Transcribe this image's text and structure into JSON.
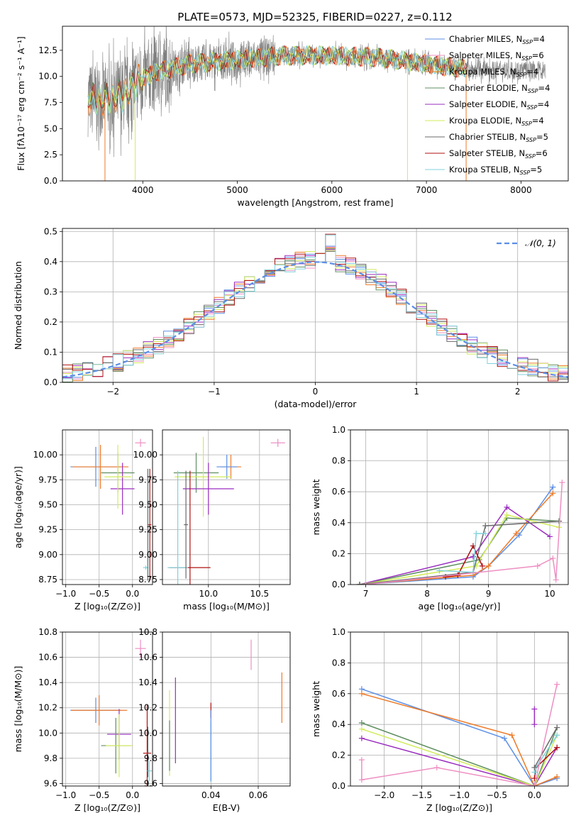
{
  "figure_title": "PLATE=0573, MJD=52325, FIBERID=0227, z=0.112",
  "colors": {
    "chabrier_miles": "#5b8ee6",
    "salpeter_miles": "#ee8fc2",
    "kroupa_miles": "#ee7a28",
    "chabrier_elodie": "#5f8f60",
    "salpeter_elodie": "#9a2dbf",
    "kroupa_elodie": "#d2ec5a",
    "chabrier_stelib": "#6a6a6a",
    "salpeter_stelib": "#b01212",
    "kroupa_stelib": "#80d0dc",
    "data": "#808080",
    "gaussian": "#5b8ee6"
  },
  "chart_data": [
    {
      "id": "spectrum",
      "type": "line",
      "title": "PLATE=0573, MJD=52325, FIBERID=0227, z=0.112",
      "xlabel": "wavelength [Angstrom, rest frame]",
      "ylabel": "Flux [fλ10⁻¹⁷ erg cm⁻² s⁻¹ A⁻¹]",
      "xlim": [
        3150,
        8500
      ],
      "ylim": [
        0,
        14.8
      ],
      "xticks": [
        4000,
        5000,
        6000,
        7000,
        8000
      ],
      "yticks": [
        0.0,
        2.5,
        5.0,
        7.5,
        10.0,
        12.5
      ],
      "grid": false,
      "legend_position": "top-right",
      "legend": [
        {
          "label": "Chabrier MILES, N",
          "sub": "SSP",
          "suffix": "=4",
          "color": "chabrier_miles"
        },
        {
          "label": "Salpeter MILES, N",
          "sub": "SSP",
          "suffix": "=6",
          "color": "salpeter_miles"
        },
        {
          "label": "Kroupa MILES, N",
          "sub": "SSP",
          "suffix": "=4",
          "color": "kroupa_miles"
        },
        {
          "label": "Chabrier ELODIE, N",
          "sub": "SSP",
          "suffix": "=4",
          "color": "chabrier_elodie"
        },
        {
          "label": "Salpeter ELODIE, N",
          "sub": "SSP",
          "suffix": "=4",
          "color": "salpeter_elodie"
        },
        {
          "label": "Kroupa ELODIE, N",
          "sub": "SSP",
          "suffix": "=4",
          "color": "kroupa_elodie"
        },
        {
          "label": "Chabrier STELIB, N",
          "sub": "SSP",
          "suffix": "=5",
          "color": "chabrier_stelib"
        },
        {
          "label": "Salpeter STELIB, N",
          "sub": "SSP",
          "suffix": "=6",
          "color": "salpeter_stelib"
        },
        {
          "label": "Kroupa STELIB, N",
          "sub": "SSP",
          "suffix": "=5",
          "color": "kroupa_stelib"
        }
      ],
      "continuum": [
        [
          3420,
          7.8
        ],
        [
          3600,
          7.8
        ],
        [
          3800,
          8.2
        ],
        [
          3950,
          9.6
        ],
        [
          4100,
          10.3
        ],
        [
          4500,
          11.2
        ],
        [
          5000,
          11.6
        ],
        [
          5500,
          12.0
        ],
        [
          6000,
          12.0
        ],
        [
          6500,
          11.8
        ],
        [
          7000,
          11.2
        ],
        [
          7500,
          10.6
        ],
        [
          8000,
          10.6
        ],
        [
          8260,
          10.6
        ]
      ],
      "spectrum_range": [
        3420,
        8260
      ],
      "model_range": [
        3420,
        7420
      ],
      "model_drops": [
        {
          "wavelength": 3600,
          "color": "kroupa_miles"
        },
        {
          "wavelength": 3920,
          "color": "kroupa_elodie"
        },
        {
          "wavelength": 6800,
          "color": "kroupa_elodie"
        },
        {
          "wavelength": 7420,
          "color": "kroupa_miles"
        }
      ]
    },
    {
      "id": "residuals",
      "type": "step",
      "xlabel": "(data-model)/error",
      "ylabel": "Normed distribution",
      "xlim": [
        -2.5,
        2.5
      ],
      "ylim": [
        0,
        0.51
      ],
      "xticks": [
        -2,
        -1,
        0,
        1,
        2
      ],
      "yticks": [
        0.0,
        0.1,
        0.2,
        0.3,
        0.4,
        0.5
      ],
      "grid": true,
      "legend_position": "top-right",
      "gaussian_label": "𝒩(0, 1)",
      "bin_width": 0.1,
      "bin_start": -2.5,
      "series": [
        {
          "color": "chabrier_miles",
          "values": [
            0.028,
            0.031,
            0.036,
            0.04,
            0.048,
            0.057,
            0.068,
            0.079,
            0.092,
            0.107,
            0.123,
            0.14,
            0.158,
            0.177,
            0.197,
            0.218,
            0.24,
            0.262,
            0.282,
            0.302,
            0.322,
            0.34,
            0.356,
            0.37,
            0.382,
            0.392,
            0.399,
            0.404,
            0.406,
            0.405,
            0.401,
            0.394,
            0.384,
            0.371,
            0.355,
            0.337,
            0.317,
            0.295,
            0.272,
            0.249,
            0.225,
            0.203,
            0.181,
            0.16,
            0.141,
            0.123,
            0.107,
            0.092,
            0.079,
            0.068
          ]
        },
        {
          "color": "salpeter_miles",
          "values": [
            0.03,
            0.033,
            0.038,
            0.044,
            0.052,
            0.062,
            0.073,
            0.085,
            0.098,
            0.113,
            0.129,
            0.146,
            0.164,
            0.183,
            0.203,
            0.224,
            0.246,
            0.268,
            0.289,
            0.309,
            0.328,
            0.346,
            0.361,
            0.375,
            0.387,
            0.397,
            0.404,
            0.409,
            0.411,
            0.41,
            0.406,
            0.399,
            0.389,
            0.376,
            0.36,
            0.342,
            0.322,
            0.3,
            0.277,
            0.254,
            0.23,
            0.207,
            0.185,
            0.164,
            0.145,
            0.127,
            0.11,
            0.095,
            0.082,
            0.07
          ]
        }
      ],
      "gaussian_curve": [
        [
          -2.5,
          0.0175
        ],
        [
          -2.0,
          0.054
        ],
        [
          -1.5,
          0.1295
        ],
        [
          -1.0,
          0.242
        ],
        [
          -0.5,
          0.352
        ],
        [
          0.0,
          0.399
        ],
        [
          0.5,
          0.352
        ],
        [
          1.0,
          0.242
        ],
        [
          1.5,
          0.1295
        ],
        [
          2.0,
          0.054
        ],
        [
          2.5,
          0.0175
        ]
      ]
    },
    {
      "id": "age_vs_metallicity",
      "type": "errorbar",
      "xlabel": "Z [log₁₀(Z/Z⊙)]",
      "ylabel": "age  [log₁₀(age/yr)]",
      "xlim": [
        -1.05,
        0.3
      ],
      "ylim": [
        8.7,
        10.25
      ],
      "xticks": [
        -1.0,
        -0.5,
        0.0
      ],
      "yticks": [
        8.75,
        9.0,
        9.25,
        9.5,
        9.75,
        10.0
      ],
      "grid": true,
      "points": [
        {
          "color": "chabrier_miles",
          "x": -0.55,
          "y": 9.88,
          "xerr": 0.38,
          "yerr": 0.2
        },
        {
          "color": "salpeter_miles",
          "x": 0.12,
          "y": 10.12,
          "xerr": 0.08,
          "yerr": 0.04
        },
        {
          "color": "kroupa_miles",
          "x": -0.48,
          "y": 9.88,
          "xerr": 0.42,
          "yerr": 0.22
        },
        {
          "color": "chabrier_elodie",
          "x": -0.22,
          "y": 9.82,
          "xerr": 0.25,
          "yerr": 0.2
        },
        {
          "color": "salpeter_elodie",
          "x": -0.15,
          "y": 9.66,
          "xerr": 0.18,
          "yerr": 0.26
        },
        {
          "color": "kroupa_elodie",
          "x": -0.22,
          "y": 9.78,
          "xerr": 0.2,
          "yerr": 0.32
        },
        {
          "color": "salpeter_stelib",
          "x": 0.26,
          "y": 9.3,
          "xerr": 0.02,
          "yerr": 0.56
        },
        {
          "color": "kroupa_stelib",
          "x": 0.2,
          "y": 8.87,
          "xerr": 0.04,
          "yerr": 0.02
        },
        {
          "color": "chabrier_stelib",
          "x": 0.23,
          "y": 9.3,
          "xerr": 0.01,
          "yerr": 0.56
        }
      ]
    },
    {
      "id": "age_vs_mass",
      "type": "errorbar",
      "xlabel": "mass [log₁₀(M/M⊙)]",
      "ylabel": "",
      "xlim": [
        9.55,
        10.8
      ],
      "ylim": [
        8.7,
        10.25
      ],
      "xticks": [
        10.0,
        10.5
      ],
      "yticks": [
        8.75,
        9.0,
        9.25,
        9.5,
        9.75,
        10.0
      ],
      "grid": true,
      "points": [
        {
          "color": "salpeter_miles",
          "x": 10.68,
          "y": 10.12,
          "xerr": 0.07,
          "yerr": 0.04
        },
        {
          "color": "kroupa_miles",
          "x": 10.22,
          "y": 9.88,
          "xerr": 0.1,
          "yerr": 0.12
        },
        {
          "color": "chabrier_miles",
          "x": 10.18,
          "y": 9.88,
          "xerr": 0.1,
          "yerr": 0.12
        },
        {
          "color": "chabrier_elodie",
          "x": 9.88,
          "y": 9.82,
          "xerr": 0.22,
          "yerr": 0.2
        },
        {
          "color": "kroupa_elodie",
          "x": 9.95,
          "y": 9.78,
          "xerr": 0.28,
          "yerr": 0.4
        },
        {
          "color": "salpeter_elodie",
          "x": 10.0,
          "y": 9.66,
          "xerr": 0.25,
          "yerr": 0.26
        },
        {
          "color": "salpeter_stelib",
          "x": 9.82,
          "y": 8.87,
          "xerr": 0.2,
          "yerr": 0.97
        },
        {
          "color": "kroupa_stelib",
          "x": 9.7,
          "y": 8.87,
          "xerr": 0.1,
          "yerr": 0.97
        },
        {
          "color": "chabrier_stelib",
          "x": 9.78,
          "y": 9.3,
          "xerr": 0.02,
          "yerr": 0.54
        }
      ]
    },
    {
      "id": "mass_weight_vs_age",
      "type": "line",
      "xlabel": "age  [log₁₀(age/yr)]",
      "ylabel": "mass weight",
      "xlim": [
        6.75,
        10.3
      ],
      "ylim": [
        0,
        1.0
      ],
      "xticks": [
        7,
        8,
        9,
        10
      ],
      "yticks": [
        0.0,
        0.2,
        0.4,
        0.6,
        0.8,
        1.0
      ],
      "grid": true,
      "series": [
        {
          "color": "chabrier_miles",
          "x": [
            6.9,
            8.75,
            9.0,
            9.5,
            10.05
          ],
          "y": [
            0.0,
            0.05,
            0.12,
            0.32,
            0.63
          ]
        },
        {
          "color": "kroupa_miles",
          "x": [
            6.9,
            8.75,
            9.0,
            9.45,
            10.05
          ],
          "y": [
            0.0,
            0.06,
            0.12,
            0.33,
            0.59
          ]
        },
        {
          "color": "chabrier_elodie",
          "x": [
            6.9,
            8.85,
            9.3,
            10.15
          ],
          "y": [
            0.0,
            0.16,
            0.43,
            0.41
          ]
        },
        {
          "color": "salpeter_elodie",
          "x": [
            6.9,
            8.75,
            9.3,
            10.0
          ],
          "y": [
            0.0,
            0.18,
            0.5,
            0.31
          ]
        },
        {
          "color": "kroupa_elodie",
          "x": [
            6.9,
            8.8,
            9.3,
            10.15
          ],
          "y": [
            0.0,
            0.12,
            0.45,
            0.37
          ]
        },
        {
          "color": "chabrier_stelib",
          "x": [
            6.9,
            8.75,
            8.95,
            10.15
          ],
          "y": [
            0.0,
            0.08,
            0.38,
            0.41
          ]
        },
        {
          "color": "salpeter_stelib",
          "x": [
            8.3,
            8.5,
            8.75,
            8.9
          ],
          "y": [
            0.05,
            0.06,
            0.25,
            0.12
          ]
        },
        {
          "color": "kroupa_stelib",
          "x": [
            8.2,
            8.75,
            8.8,
            8.95
          ],
          "y": [
            0.09,
            0.08,
            0.33,
            0.33
          ]
        },
        {
          "color": "salpeter_miles",
          "x": [
            7.0,
            9.8,
            10.05,
            10.1,
            10.2
          ],
          "y": [
            0.0,
            0.12,
            0.17,
            0.03,
            0.66
          ]
        }
      ]
    },
    {
      "id": "mass_vs_metallicity",
      "type": "errorbar",
      "xlabel": "Z [log₁₀(Z/Z⊙)]",
      "ylabel": "mass [log₁₀(M/M⊙)]",
      "xlim": [
        -1.05,
        0.3
      ],
      "ylim": [
        9.58,
        10.8
      ],
      "xticks": [
        -1.0,
        -0.5,
        0.0
      ],
      "yticks": [
        9.6,
        9.8,
        10.0,
        10.2,
        10.4,
        10.6,
        10.8
      ],
      "grid": true,
      "points": [
        {
          "color": "salpeter_miles",
          "x": 0.12,
          "y": 10.67,
          "xerr": 0.08,
          "yerr": 0.07
        },
        {
          "color": "chabrier_miles",
          "x": -0.55,
          "y": 10.18,
          "xerr": 0.38,
          "yerr": 0.1
        },
        {
          "color": "kroupa_miles",
          "x": -0.5,
          "y": 10.18,
          "xerr": 0.42,
          "yerr": 0.12
        },
        {
          "color": "salpeter_elodie",
          "x": -0.2,
          "y": 9.99,
          "xerr": 0.18,
          "yerr": 0.2
        },
        {
          "color": "chabrier_elodie",
          "x": -0.25,
          "y": 9.9,
          "xerr": 0.22,
          "yerr": 0.22
        },
        {
          "color": "kroupa_elodie",
          "x": -0.2,
          "y": 9.9,
          "xerr": 0.2,
          "yerr": 0.25
        },
        {
          "color": "salpeter_stelib",
          "x": 0.22,
          "y": 9.84,
          "xerr": 0.06,
          "yerr": 0.38
        },
        {
          "color": "kroupa_stelib",
          "x": 0.25,
          "y": 9.7,
          "xerr": 0.04,
          "yerr": 0.08
        },
        {
          "color": "chabrier_stelib",
          "x": 0.23,
          "y": 9.85,
          "xerr": 0.01,
          "yerr": 0.2
        }
      ]
    },
    {
      "id": "mass_vs_extinction",
      "type": "errorbar",
      "xlabel": "E(B-V)",
      "ylabel": "",
      "xlim": [
        0.0195,
        0.0735
      ],
      "ylim": [
        9.58,
        10.8
      ],
      "xticks": [
        0.04,
        0.06
      ],
      "yticks": [
        9.6,
        9.8,
        10.0,
        10.2,
        10.4,
        10.6,
        10.8
      ],
      "grid": true,
      "points": [
        {
          "color": "salpeter_miles",
          "x": 0.057,
          "y": 10.62,
          "xerr": 0.0,
          "yerr": 0.12
        },
        {
          "color": "kroupa_miles",
          "x": 0.07,
          "y": 10.28,
          "xerr": 0.0,
          "yerr": 0.2
        },
        {
          "color": "salpeter_elodie",
          "x": 0.025,
          "y": 10.1,
          "xerr": 0.0,
          "yerr": 0.34
        },
        {
          "color": "kroupa_elodie",
          "x": 0.0225,
          "y": 10.0,
          "xerr": 0.0,
          "yerr": 0.34
        },
        {
          "color": "chabrier_elodie",
          "x": 0.0225,
          "y": 9.9,
          "xerr": 0.0,
          "yerr": 0.2
        },
        {
          "color": "salpeter_stelib",
          "x": 0.04,
          "y": 10.18,
          "xerr": 0.0,
          "yerr": 0.06
        },
        {
          "color": "kroupa_stelib",
          "x": 0.04,
          "y": 9.85,
          "xerr": 0.0,
          "yerr": 0.24
        },
        {
          "color": "chabrier_miles",
          "x": 0.04,
          "y": 9.9,
          "xerr": 0.0,
          "yerr": 0.28
        }
      ]
    },
    {
      "id": "mass_weight_vs_metallicity",
      "type": "line",
      "xlabel": "Z [log₁₀(Z/Z⊙)]",
      "ylabel": "mass weight",
      "xlim": [
        -2.45,
        0.45
      ],
      "ylim": [
        0,
        1.0
      ],
      "xticks": [
        -2.0,
        -1.5,
        -1.0,
        -0.5,
        0.0
      ],
      "yticks": [
        0.0,
        0.2,
        0.4,
        0.6,
        0.8,
        1.0
      ],
      "grid": true,
      "series": [
        {
          "color": "chabrier_miles",
          "x": [
            -2.3,
            -0.4,
            0.0,
            0.3
          ],
          "y": [
            0.63,
            0.31,
            0.0,
            0.05
          ]
        },
        {
          "color": "kroupa_miles",
          "x": [
            -2.3,
            -0.3,
            0.0,
            0.3
          ],
          "y": [
            0.6,
            0.33,
            0.0,
            0.06
          ]
        },
        {
          "color": "chabrier_elodie",
          "x": [
            -2.3,
            0.0,
            0.3
          ],
          "y": [
            0.41,
            0.0,
            0.38
          ]
        },
        {
          "color": "salpeter_elodie",
          "x": [
            -2.3,
            0.0,
            0.3
          ],
          "y": [
            0.31,
            0.0,
            0.25
          ]
        },
        {
          "color": "kroupa_elodie",
          "x": [
            -2.3,
            0.0,
            0.3
          ],
          "y": [
            0.37,
            0.0,
            0.33
          ]
        },
        {
          "color": "salpeter_stelib",
          "x": [
            0.0,
            0.02,
            0.3
          ],
          "y": [
            0.05,
            0.12,
            0.25
          ]
        },
        {
          "color": "kroupa_stelib",
          "x": [
            0.0,
            0.02,
            0.3
          ],
          "y": [
            0.09,
            0.12,
            0.33
          ]
        },
        {
          "color": "chabrier_stelib",
          "x": [
            0.0,
            0.3
          ],
          "y": [
            0.12,
            0.38
          ]
        },
        {
          "color": "salpeter_miles",
          "x": [
            -2.3,
            -2.3,
            -1.3,
            0.0,
            0.3
          ],
          "y": [
            0.17,
            0.04,
            0.12,
            0.0,
            0.66
          ]
        },
        {
          "color": "salpeter_elodie",
          "x": [
            0.0,
            0.0
          ],
          "y": [
            0.5,
            0.4
          ]
        }
      ]
    }
  ]
}
